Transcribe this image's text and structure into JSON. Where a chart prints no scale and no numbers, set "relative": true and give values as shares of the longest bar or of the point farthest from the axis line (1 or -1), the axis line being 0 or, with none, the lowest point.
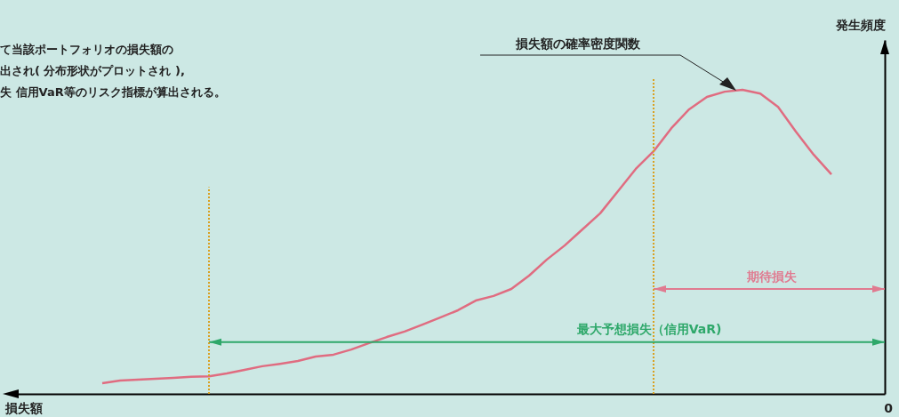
{
  "chart_data": {
    "type": "line",
    "relative": true,
    "xlabel": "損失額",
    "ylabel": "発生頻度",
    "categories": [
      null,
      null,
      null,
      null,
      null,
      null,
      null,
      null,
      null,
      null,
      null,
      null,
      null,
      null,
      null,
      null,
      null,
      null,
      null,
      null,
      null,
      null,
      null,
      null,
      null,
      null,
      null,
      null,
      null,
      null,
      null,
      null,
      null,
      null,
      null,
      null,
      null,
      null,
      null,
      null,
      null,
      null,
      null,
      null,
      null,
      null,
      null,
      null,
      null,
      null
    ],
    "series": [
      {
        "color": "#e06c80",
        "values": [
          null,
          null,
          null,
          null,
          null,
          0.035,
          0.044,
          0.047,
          0.05,
          0.053,
          0.056,
          0.058,
          0.067,
          0.079,
          0.091,
          0.099,
          0.108,
          0.123,
          0.129,
          0.146,
          0.167,
          0.187,
          0.205,
          0.228,
          0.251,
          0.275,
          0.307,
          0.322,
          0.345,
          0.389,
          0.442,
          0.488,
          0.541,
          0.594,
          0.667,
          0.74,
          0.798,
          0.874,
          0.936,
          0.977,
          0.994,
          1,
          0.988,
          0.944,
          0.863,
          0.787,
          0.722,
          null,
          null,
          null
        ]
      }
    ],
    "annotations": [
      "て当該ポートフォリオの損失額の",
      "出され( 分布形状がプロットされ ),",
      "失 信用VaR等のリスク指標が算出される。",
      "損失額の確率密度関数",
      "0",
      "期待損失",
      "最大予想損失（信用VaR)"
    ],
    "grid": false
  }
}
